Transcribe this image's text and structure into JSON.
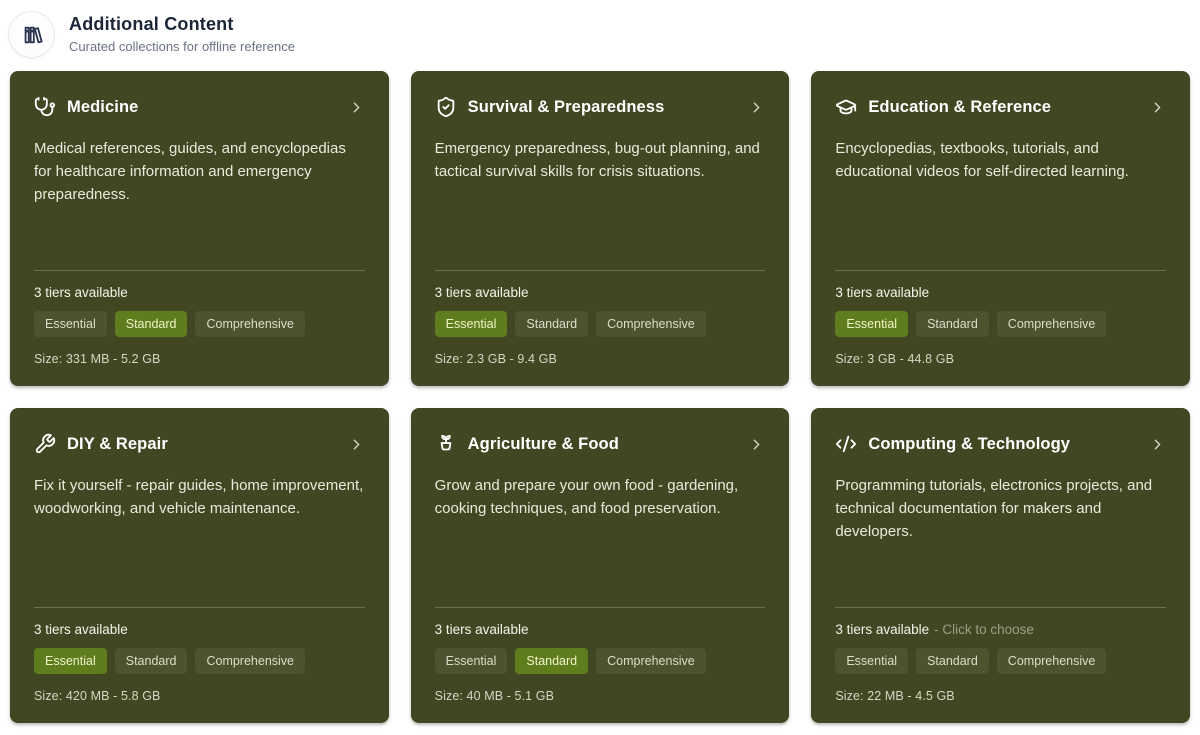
{
  "header": {
    "title": "Additional Content",
    "subtitle": "Curated collections for offline reference",
    "icon": "library-icon"
  },
  "cards": [
    {
      "title": "Medicine",
      "icon": "stethoscope-icon",
      "description": "Medical references, guides, and encyclopedias for healthcare information and emergency preparedness.",
      "tiers_label": "3 tiers available",
      "hint": "",
      "tiers": [
        "Essential",
        "Standard",
        "Comprehensive"
      ],
      "selected_tier": "Standard",
      "size": "Size: 331 MB - 5.2 GB"
    },
    {
      "title": "Survival & Preparedness",
      "icon": "shield-check-icon",
      "description": "Emergency preparedness, bug-out planning, and tactical survival skills for crisis situations.",
      "tiers_label": "3 tiers available",
      "hint": "",
      "tiers": [
        "Essential",
        "Standard",
        "Comprehensive"
      ],
      "selected_tier": "Essential",
      "size": "Size: 2.3 GB - 9.4 GB"
    },
    {
      "title": "Education & Reference",
      "icon": "graduation-cap-icon",
      "description": "Encyclopedias, textbooks, tutorials, and educational videos for self-directed learning.",
      "tiers_label": "3 tiers available",
      "hint": "",
      "tiers": [
        "Essential",
        "Standard",
        "Comprehensive"
      ],
      "selected_tier": "Essential",
      "size": "Size: 3 GB - 44.8 GB"
    },
    {
      "title": "DIY & Repair",
      "icon": "wrench-icon",
      "description": "Fix it yourself - repair guides, home improvement, woodworking, and vehicle maintenance.",
      "tiers_label": "3 tiers available",
      "hint": "",
      "tiers": [
        "Essential",
        "Standard",
        "Comprehensive"
      ],
      "selected_tier": "Essential",
      "size": "Size: 420 MB - 5.8 GB"
    },
    {
      "title": "Agriculture & Food",
      "icon": "sprout-icon",
      "description": "Grow and prepare your own food - gardening, cooking techniques, and food preservation.",
      "tiers_label": "3 tiers available",
      "hint": "",
      "tiers": [
        "Essential",
        "Standard",
        "Comprehensive"
      ],
      "selected_tier": "Standard",
      "size": "Size: 40 MB - 5.1 GB"
    },
    {
      "title": "Computing & Technology",
      "icon": "code-icon",
      "description": "Programming tutorials, electronics projects, and technical documentation for makers and developers.",
      "tiers_label": "3 tiers available",
      "hint": "- Click to choose",
      "tiers": [
        "Essential",
        "Standard",
        "Comprehensive"
      ],
      "selected_tier": "",
      "size": "Size: 22 MB - 4.5 GB"
    }
  ],
  "colors": {
    "card_background": "#414722",
    "selected_tier_background": "#5e7d1d",
    "tier_badge_background": "#4d532e",
    "header_title_color": "#1b2538"
  }
}
